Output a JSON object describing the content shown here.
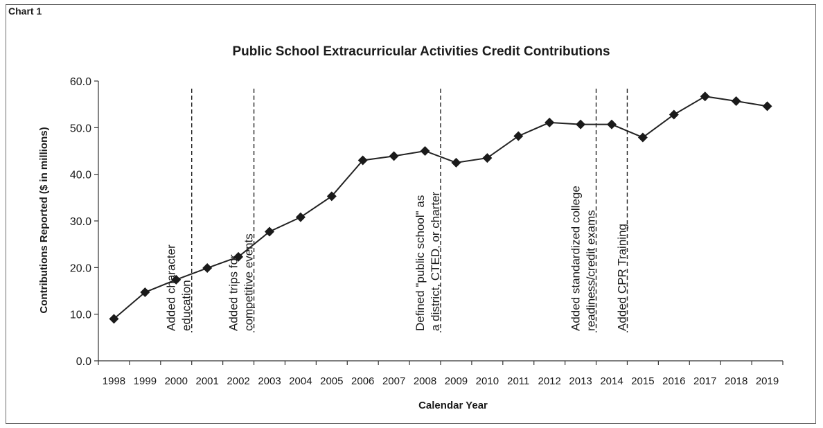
{
  "chart_label": "Chart 1",
  "chart_data": {
    "type": "line",
    "title": "Public School Extracurricular Activities Credit Contributions",
    "xlabel": "Calendar Year",
    "ylabel": "Contributions Reported ($ in millions)",
    "ylim": [
      0,
      60
    ],
    "yticks": [
      "0.0",
      "10.0",
      "20.0",
      "30.0",
      "40.0",
      "50.0",
      "60.0"
    ],
    "categories": [
      "1998",
      "1999",
      "2000",
      "2001",
      "2002",
      "2003",
      "2004",
      "2005",
      "2006",
      "2007",
      "2008",
      "2009",
      "2010",
      "2011",
      "2012",
      "2013",
      "2014",
      "2015",
      "2016",
      "2017",
      "2018",
      "2019"
    ],
    "values": [
      9.0,
      14.7,
      17.4,
      19.9,
      22.3,
      27.7,
      30.8,
      35.3,
      43.0,
      43.9,
      45.0,
      42.5,
      43.5,
      48.2,
      51.1,
      50.7,
      50.7,
      47.9,
      52.8,
      56.7,
      55.7,
      54.6
    ],
    "grid": false,
    "marker": "diamond",
    "line_color": "#222222",
    "annotations": [
      {
        "lines": [
          "Added character",
          "education"
        ],
        "after_category": "2000"
      },
      {
        "lines": [
          "Added trips for",
          "competitive events"
        ],
        "after_category": "2002"
      },
      {
        "lines": [
          "Defined \"public school\" as",
          "a district, CTED, or charter"
        ],
        "after_category": "2008"
      },
      {
        "lines": [
          "Added standardized college",
          "readiness/credit exams"
        ],
        "after_category": "2013"
      },
      {
        "lines": [
          "Added CPR Training"
        ],
        "after_category": "2014"
      }
    ]
  }
}
